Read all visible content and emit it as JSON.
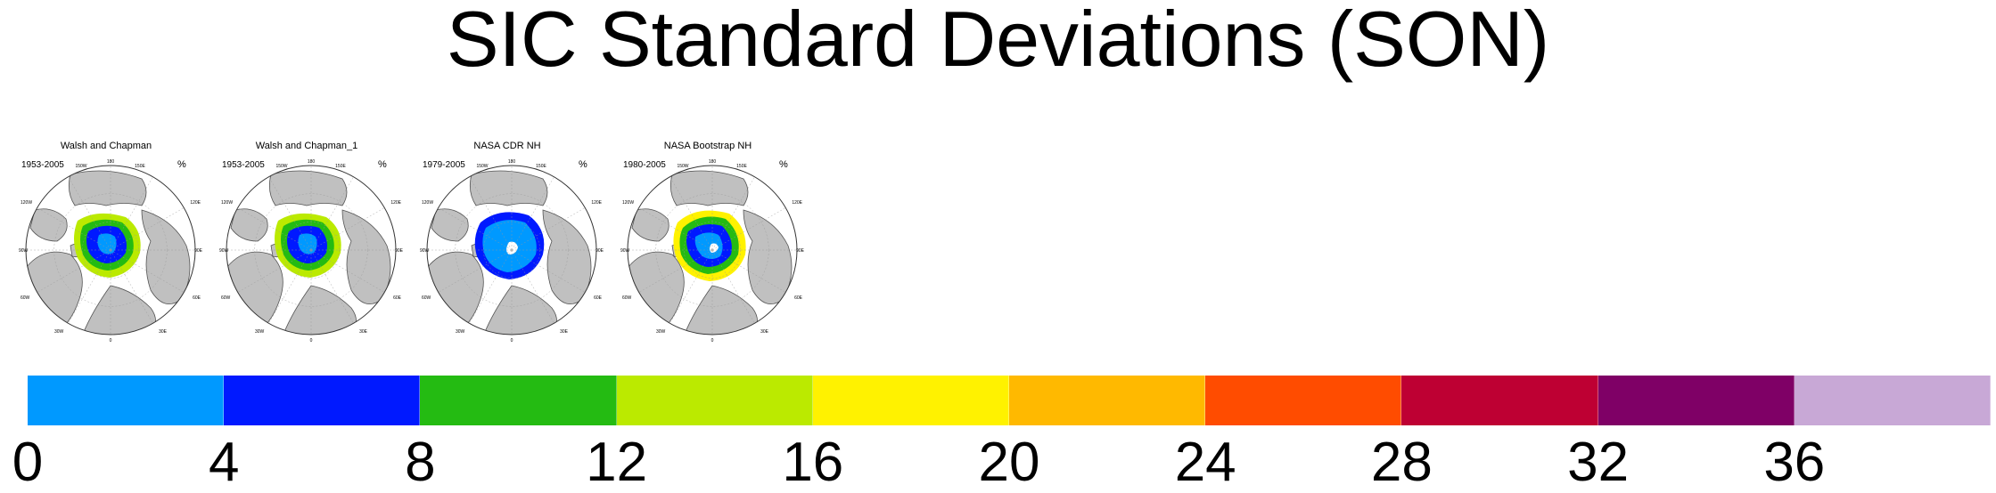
{
  "title": "SIC Standard Deviations (SON)",
  "panels": [
    {
      "title": "Walsh and Chapman",
      "period": "1953-2005",
      "units": "%"
    },
    {
      "title": "Walsh and Chapman_1",
      "period": "1953-2005",
      "units": "%"
    },
    {
      "title": "NASA CDR NH",
      "period": "1979-2005",
      "units": "%"
    },
    {
      "title": "NASA Bootstrap NH",
      "period": "1980-2005",
      "units": "%"
    }
  ],
  "map_labels": {
    "top": "180",
    "top_left": "150W",
    "top_right": "150E",
    "left_upper": "120W",
    "right_upper": "120E",
    "left": "90W",
    "right": "90E",
    "left_lower": "60W",
    "right_lower": "60E",
    "bottom_left": "30W",
    "bottom_right": "30E",
    "bottom": "0"
  },
  "colorbar": {
    "colors": [
      "#0099ff",
      "#0019ff",
      "#24bb12",
      "#bbea00",
      "#fff200",
      "#ffb900",
      "#ff4c00",
      "#be0033",
      "#7f0066",
      "#c8a8d6"
    ],
    "ticks": [
      "0",
      "4",
      "8",
      "12",
      "16",
      "20",
      "24",
      "28",
      "32",
      "36"
    ]
  }
}
